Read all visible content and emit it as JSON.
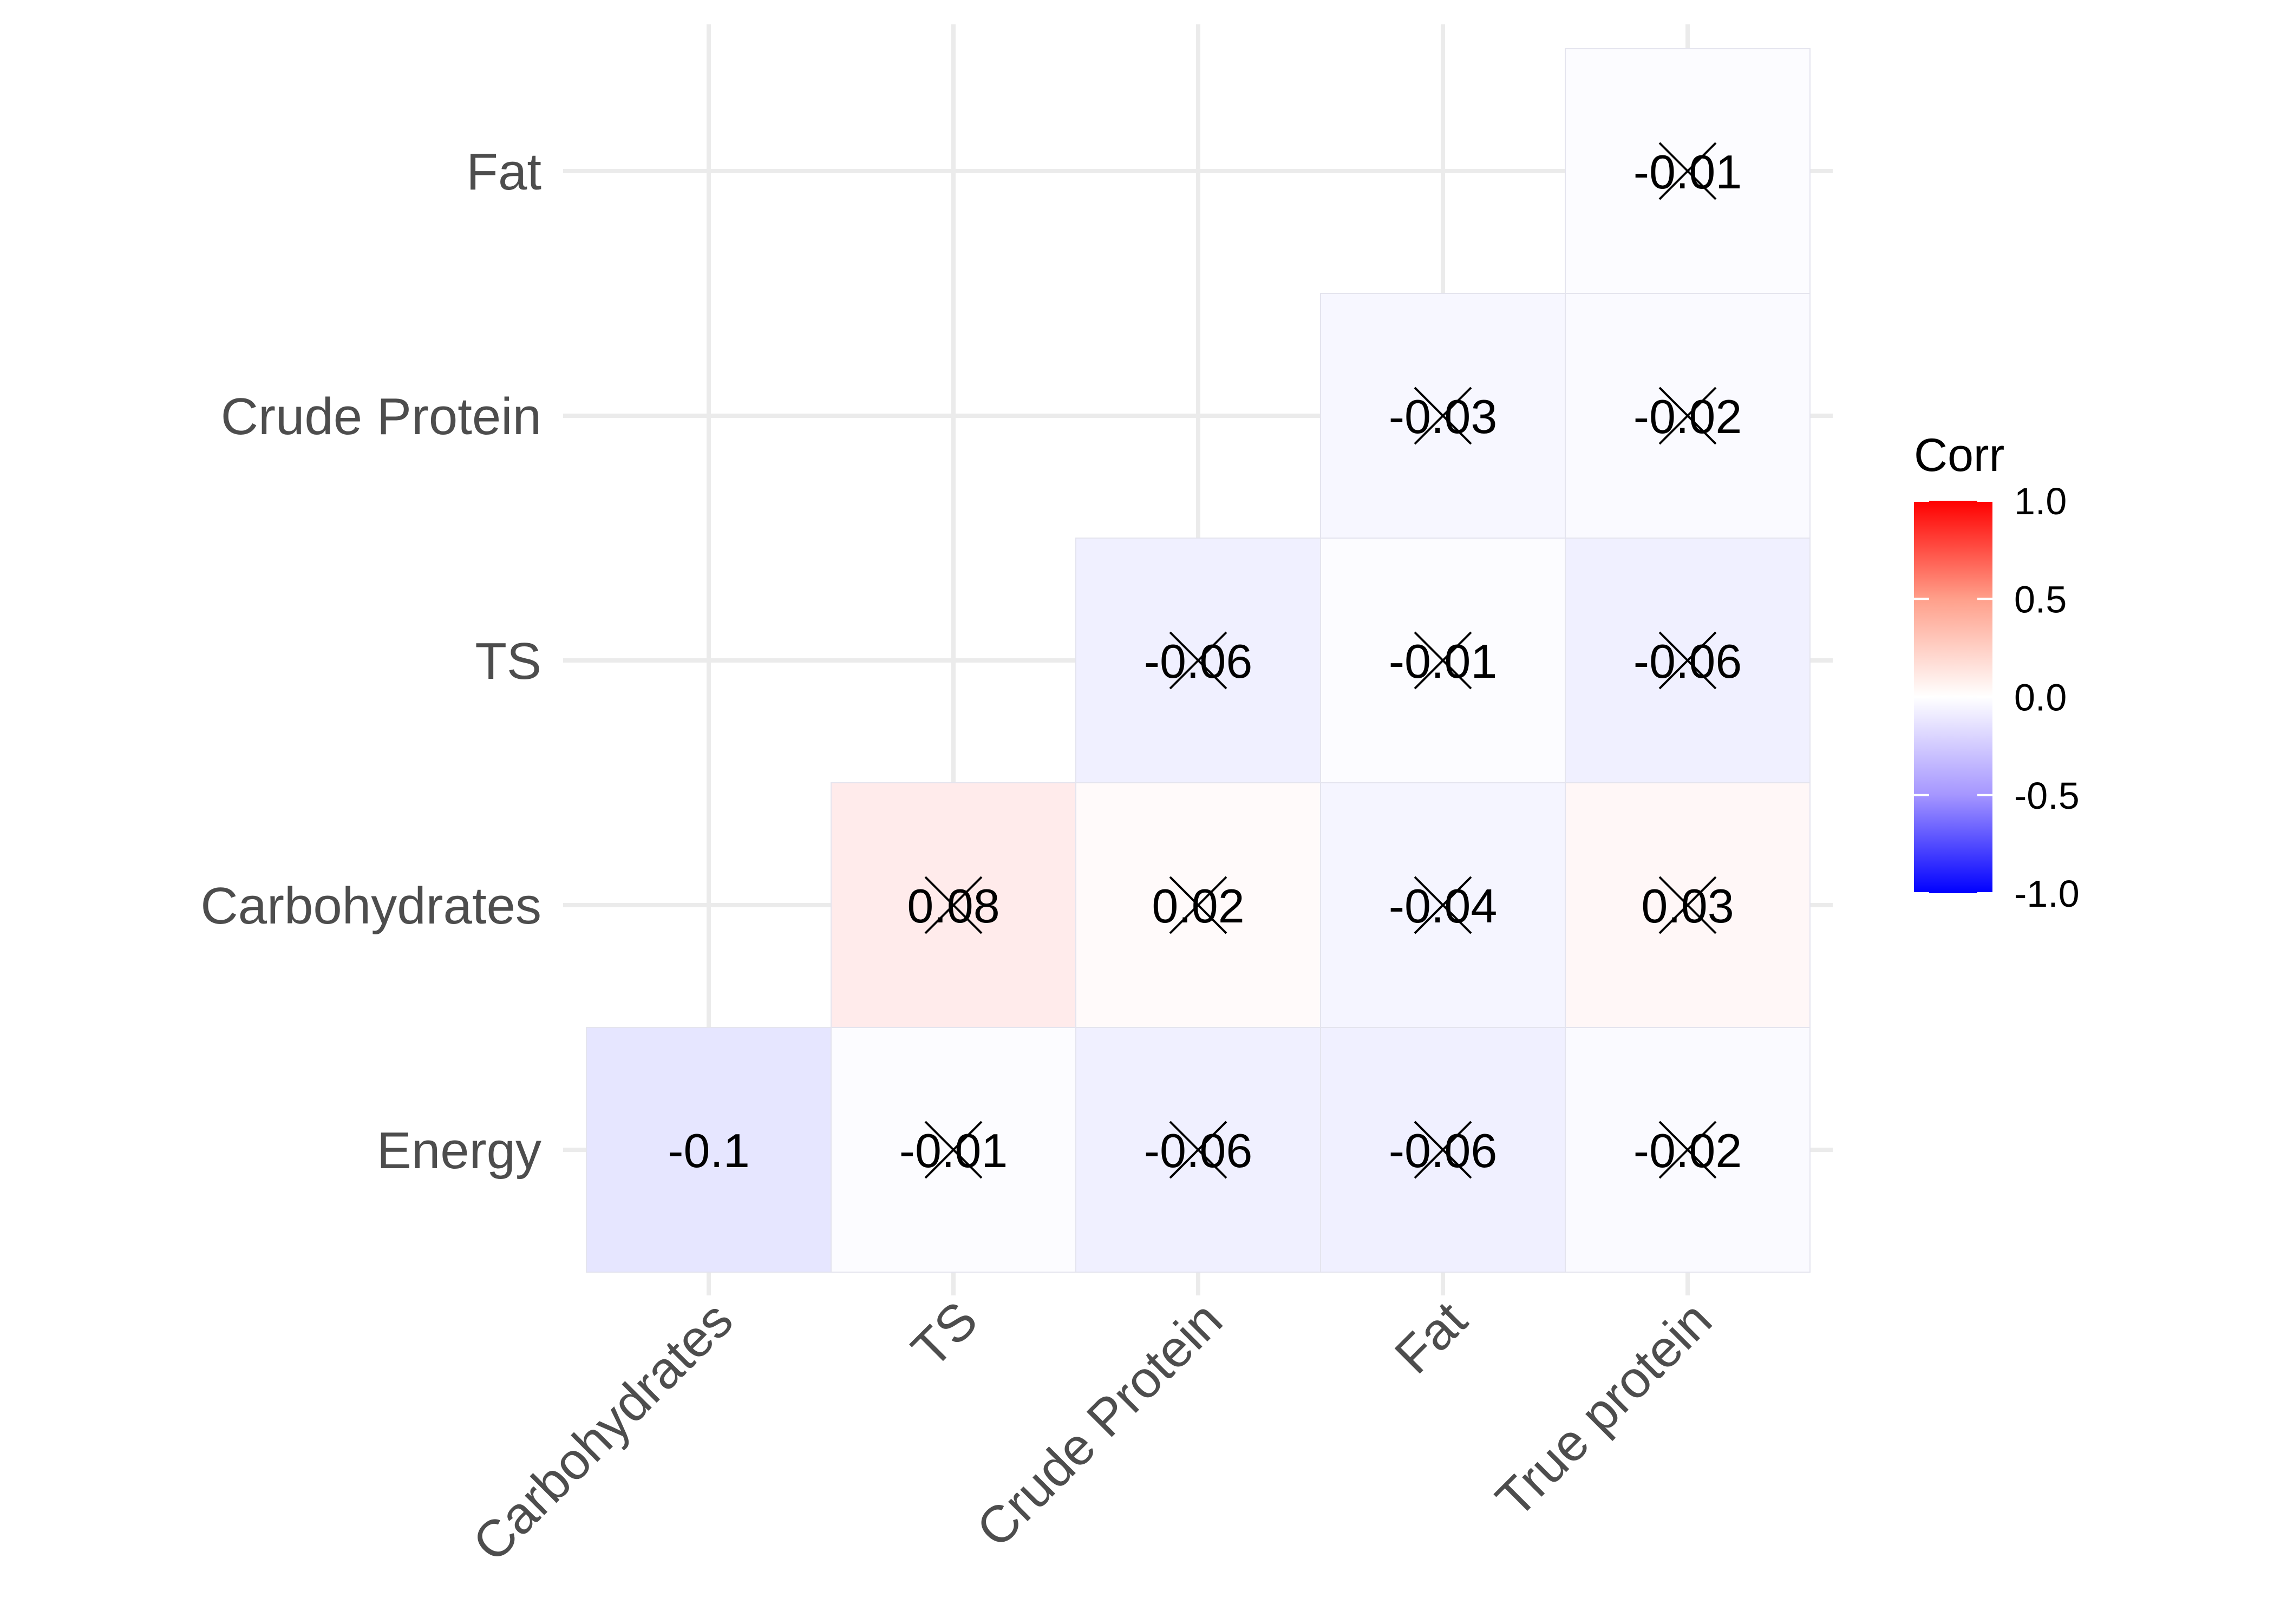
{
  "chart_data": {
    "type": "heatmap",
    "title": "",
    "xlabel": "",
    "ylabel": "",
    "x_categories": [
      "Carbohydrates",
      "TS",
      "Crude Protein",
      "Fat",
      "True protein"
    ],
    "y_categories": [
      "Energy",
      "Carbohydrates",
      "TS",
      "Crude Protein",
      "Fat"
    ],
    "cells": [
      {
        "x": "Carbohydrates",
        "y": "Energy",
        "value": -0.1,
        "label": "-0.1",
        "crossed": false
      },
      {
        "x": "TS",
        "y": "Energy",
        "value": -0.01,
        "label": "-0.01",
        "crossed": true
      },
      {
        "x": "Crude Protein",
        "y": "Energy",
        "value": -0.06,
        "label": "-0.06",
        "crossed": true
      },
      {
        "x": "Fat",
        "y": "Energy",
        "value": -0.06,
        "label": "-0.06",
        "crossed": true
      },
      {
        "x": "True protein",
        "y": "Energy",
        "value": -0.02,
        "label": "-0.02",
        "crossed": true
      },
      {
        "x": "TS",
        "y": "Carbohydrates",
        "value": 0.08,
        "label": "0.08",
        "crossed": true
      },
      {
        "x": "Crude Protein",
        "y": "Carbohydrates",
        "value": 0.02,
        "label": "0.02",
        "crossed": true
      },
      {
        "x": "Fat",
        "y": "Carbohydrates",
        "value": -0.04,
        "label": "-0.04",
        "crossed": true
      },
      {
        "x": "True protein",
        "y": "Carbohydrates",
        "value": 0.03,
        "label": "0.03",
        "crossed": true
      },
      {
        "x": "Crude Protein",
        "y": "TS",
        "value": -0.06,
        "label": "-0.06",
        "crossed": true
      },
      {
        "x": "Fat",
        "y": "TS",
        "value": -0.01,
        "label": "-0.01",
        "crossed": true
      },
      {
        "x": "True protein",
        "y": "TS",
        "value": -0.06,
        "label": "-0.06",
        "crossed": true
      },
      {
        "x": "Fat",
        "y": "Crude Protein",
        "value": -0.03,
        "label": "-0.03",
        "crossed": true
      },
      {
        "x": "True protein",
        "y": "Crude Protein",
        "value": -0.02,
        "label": "-0.02",
        "crossed": true
      },
      {
        "x": "True protein",
        "y": "Fat",
        "value": -0.01,
        "label": "-0.01",
        "crossed": true
      }
    ],
    "legend": {
      "title": "Corr",
      "position": "right",
      "range": [
        -1,
        1
      ],
      "ticks": [
        "1.0",
        "0.5",
        "0.0",
        "-0.5",
        "-1.0"
      ],
      "colors": {
        "low": "#0000ff",
        "mid": "#ffffff",
        "high": "#ff0000"
      }
    },
    "grid": true
  }
}
